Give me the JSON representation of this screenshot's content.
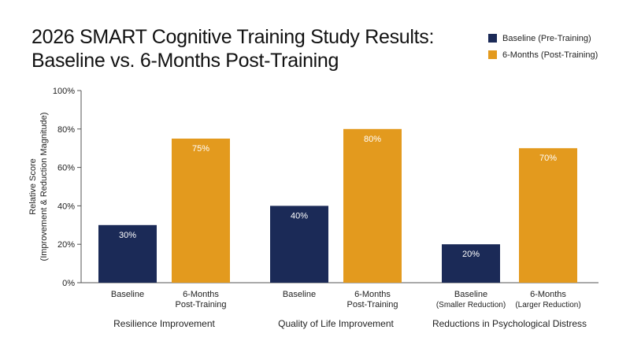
{
  "title_line1": "2026 SMART Cognitive Training Study Results:",
  "title_line2": "Baseline vs. 6-Months Post-Training",
  "colors": {
    "baseline": "#1b2a57",
    "post": "#e39a1e",
    "axis": "#555555"
  },
  "chart_data": {
    "type": "bar",
    "ylabel_line1": "Relative Score",
    "ylabel_line2": "(Improvement & Reduction Magnitude)",
    "ylim": [
      0,
      100
    ],
    "yticks": [
      0,
      20,
      40,
      60,
      80,
      100
    ],
    "ytick_labels": [
      "0%",
      "20%",
      "40%",
      "60%",
      "80%",
      "100%"
    ],
    "grid": false,
    "legend_position": "top-right",
    "series": [
      {
        "name": "Baseline (Pre-Training)",
        "color": "#1b2a57"
      },
      {
        "name": "6-Months (Post-Training)",
        "color": "#e39a1e"
      }
    ],
    "groups": [
      {
        "category": "Resilience Improvement",
        "bars": [
          {
            "series": 0,
            "value": 30,
            "label": "30%",
            "xlabel": [
              "Baseline"
            ]
          },
          {
            "series": 1,
            "value": 75,
            "label": "75%",
            "xlabel": [
              "6-Months",
              "Post-Training"
            ]
          }
        ]
      },
      {
        "category": "Quality of Life Improvement",
        "bars": [
          {
            "series": 0,
            "value": 40,
            "label": "40%",
            "xlabel": [
              "Baseline"
            ]
          },
          {
            "series": 1,
            "value": 80,
            "label": "80%",
            "xlabel": [
              "6-Months",
              "Post-Training"
            ]
          }
        ]
      },
      {
        "category": "Reductions in Psychological Distress",
        "bars": [
          {
            "series": 0,
            "value": 20,
            "label": "20%",
            "xlabel": [
              "Baseline",
              "(Smaller Reduction)"
            ]
          },
          {
            "series": 1,
            "value": 70,
            "label": "70%",
            "xlabel": [
              "6-Months",
              "(Larger Reduction)"
            ]
          }
        ]
      }
    ]
  }
}
